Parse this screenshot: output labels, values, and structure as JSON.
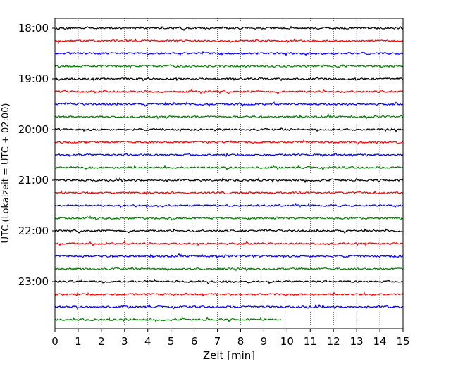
{
  "chart_data": {
    "type": "line",
    "xlabel": "Zeit  [min]",
    "ylabel": "UTC (Lokalzeit = UTC + 02:00)",
    "xlim": [
      0,
      15
    ],
    "x_ticks": [
      "0",
      "1",
      "2",
      "3",
      "4",
      "5",
      "6",
      "7",
      "8",
      "9",
      "10",
      "11",
      "12",
      "13",
      "14",
      "15"
    ],
    "y_tick_labels": [
      "18:00",
      "19:00",
      "20:00",
      "21:00",
      "22:00",
      "23:00"
    ],
    "grid": "vertical dotted",
    "trace_interval_minutes": 15,
    "start_time": "18:00",
    "color_cycle": [
      "#000000",
      "#ff0000",
      "#0000ff",
      "#008000"
    ],
    "traces": [
      {
        "label": "18:00",
        "color": "#000000",
        "end_min": 15
      },
      {
        "label": "18:15",
        "color": "#ff0000",
        "end_min": 15
      },
      {
        "label": "18:30",
        "color": "#0000ff",
        "end_min": 15
      },
      {
        "label": "18:45",
        "color": "#008000",
        "end_min": 15
      },
      {
        "label": "19:00",
        "color": "#000000",
        "end_min": 15
      },
      {
        "label": "19:15",
        "color": "#ff0000",
        "end_min": 15
      },
      {
        "label": "19:30",
        "color": "#0000ff",
        "end_min": 15
      },
      {
        "label": "19:45",
        "color": "#008000",
        "end_min": 15
      },
      {
        "label": "20:00",
        "color": "#000000",
        "end_min": 15
      },
      {
        "label": "20:15",
        "color": "#ff0000",
        "end_min": 15
      },
      {
        "label": "20:30",
        "color": "#0000ff",
        "end_min": 15
      },
      {
        "label": "20:45",
        "color": "#008000",
        "end_min": 15
      },
      {
        "label": "21:00",
        "color": "#000000",
        "end_min": 15
      },
      {
        "label": "21:15",
        "color": "#ff0000",
        "end_min": 15
      },
      {
        "label": "21:30",
        "color": "#0000ff",
        "end_min": 15
      },
      {
        "label": "21:45",
        "color": "#008000",
        "end_min": 15
      },
      {
        "label": "22:00",
        "color": "#000000",
        "end_min": 15
      },
      {
        "label": "22:15",
        "color": "#ff0000",
        "end_min": 15
      },
      {
        "label": "22:30",
        "color": "#0000ff",
        "end_min": 15
      },
      {
        "label": "22:45",
        "color": "#008000",
        "end_min": 15
      },
      {
        "label": "23:00",
        "color": "#000000",
        "end_min": 15
      },
      {
        "label": "23:15",
        "color": "#ff0000",
        "end_min": 15
      },
      {
        "label": "23:30",
        "color": "#0000ff",
        "end_min": 15
      },
      {
        "label": "23:45",
        "color": "#008000",
        "end_min": 9.75
      }
    ]
  }
}
